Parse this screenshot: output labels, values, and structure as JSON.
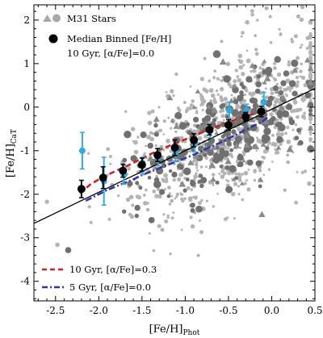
{
  "chart_data": {
    "type": "scatter",
    "xlabel": "[Fe/H]",
    "xlabel_sub": "Phot",
    "ylabel": "[Fe/H]",
    "ylabel_sub": "CaT",
    "xlim": [
      -2.75,
      0.5
    ],
    "ylim": [
      -4.45,
      2.35
    ],
    "x_ticks": [
      -2.5,
      -2.0,
      -1.5,
      -1.0,
      -0.5,
      0.0,
      0.5
    ],
    "x_tick_labels": [
      "-2.5",
      "-2.0",
      "-1.5",
      "-1.0",
      "-0.5",
      "0.0",
      "0.5"
    ],
    "y_ticks": [
      -4,
      -3,
      -2,
      -1,
      0,
      1,
      2
    ],
    "y_tick_labels": [
      "-4",
      "-3",
      "-2",
      "-1",
      "0",
      "1",
      "2"
    ],
    "grid": false,
    "legend_top": {
      "placement": "top-left",
      "entries": [
        {
          "label": "M31 Stars",
          "marker": "triangle+circle",
          "color": "#a8a8a8"
        },
        {
          "label": "Median Binned [Fe/H]",
          "marker": "circle",
          "color": "#000000"
        },
        {
          "label": "10 Gyr, [α/Fe]=0.0",
          "marker": "none",
          "color": "#000000"
        }
      ]
    },
    "legend_bottom": {
      "placement": "bottom-left",
      "entries": [
        {
          "label": "10 Gyr, [α/Fe]=0.3",
          "style": "dashed",
          "color": "#cc2222"
        },
        {
          "label": "5 Gyr, [α/Fe]=0.0",
          "style": "dash-dot",
          "color": "#3333aa"
        }
      ]
    },
    "one_to_one_line": {
      "x": [
        -2.75,
        0.5
      ],
      "y": [
        -2.67,
        0.43
      ],
      "color": "#000000",
      "label": "10 Gyr, [α/Fe]=0.0"
    },
    "red_curve": {
      "x": [
        -2.22,
        -2.1,
        -2.0,
        -1.9,
        -1.8,
        -1.7,
        -1.6,
        -1.5,
        -1.4,
        -1.3,
        -1.2,
        -1.1,
        -1.0,
        -0.9,
        -0.8,
        -0.7,
        -0.6,
        -0.5,
        -0.4,
        -0.3,
        -0.2,
        -0.1,
        -0.05
      ],
      "y": [
        -1.98,
        -1.78,
        -1.66,
        -1.56,
        -1.46,
        -1.38,
        -1.28,
        -1.18,
        -1.08,
        -0.98,
        -0.9,
        -0.82,
        -0.74,
        -0.66,
        -0.58,
        -0.5,
        -0.42,
        -0.35,
        -0.28,
        -0.21,
        -0.15,
        -0.1,
        -0.08
      ],
      "color": "#cc2222"
    },
    "blue_curve": {
      "x": [
        -2.15,
        -2.0,
        -1.9,
        -1.8,
        -1.7,
        -1.6,
        -1.5,
        -1.4,
        -1.3,
        -1.2,
        -1.1,
        -1.0,
        -0.9,
        -0.8,
        -0.7,
        -0.6,
        -0.5,
        -0.4,
        -0.3,
        -0.2,
        -0.1,
        -0.05
      ],
      "y": [
        -2.15,
        -2.0,
        -1.9,
        -1.82,
        -1.74,
        -1.66,
        -1.56,
        -1.48,
        -1.4,
        -1.32,
        -1.25,
        -1.17,
        -1.09,
        -1.0,
        -0.91,
        -0.82,
        -0.72,
        -0.62,
        -0.52,
        -0.42,
        -0.32,
        -0.24
      ],
      "color": "#3333aa"
    },
    "median_binned": {
      "x": [
        -2.2,
        -1.95,
        -1.72,
        -1.5,
        -1.32,
        -1.12,
        -0.9,
        -0.72,
        -0.5,
        -0.3,
        -0.12
      ],
      "y": [
        -1.88,
        -1.62,
        -1.46,
        -1.32,
        -1.1,
        -0.93,
        -0.76,
        -0.52,
        -0.41,
        -0.22,
        -0.1
      ],
      "err": [
        0.2,
        0.25,
        0.15,
        0.15,
        0.15,
        0.18,
        0.15,
        0.12,
        0.12,
        0.1,
        0.12
      ],
      "color": "#000000"
    },
    "cyan_binned": {
      "x": [
        -2.2,
        -1.95,
        -1.72,
        -1.5,
        -1.32,
        -1.12,
        -0.9,
        -0.72,
        -0.5,
        -0.3,
        -0.1
      ],
      "y": [
        -1.0,
        -1.7,
        -1.55,
        -1.35,
        -1.15,
        -1.05,
        -0.85,
        -0.55,
        -0.08,
        -0.08,
        0.12
      ],
      "err": [
        0.42,
        0.55,
        0.22,
        0.2,
        0.2,
        0.2,
        0.18,
        0.15,
        0.2,
        0.15,
        0.22
      ],
      "color": "#33aadd"
    },
    "scatter_light": {
      "color": "#b4b4b4",
      "marker": "circle",
      "n_points": 850
    },
    "scatter_dark": {
      "color": "#707070",
      "marker": "circle",
      "n_points": 230
    },
    "scatter_triangles": {
      "color": "#8a8a8a",
      "marker": "triangle",
      "n_points": 60
    }
  }
}
